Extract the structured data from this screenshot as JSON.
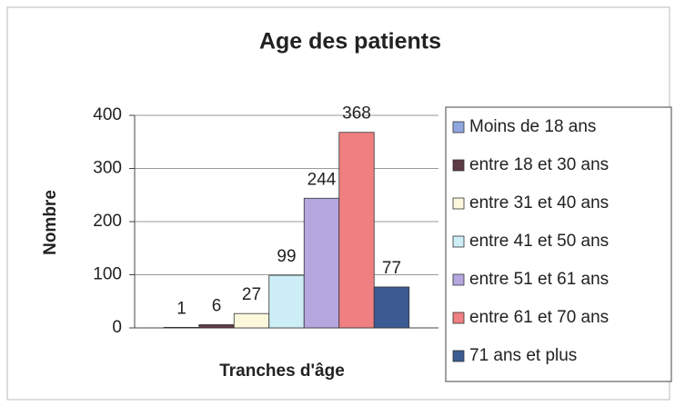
{
  "chart_data": {
    "type": "bar",
    "title": "Age des patients",
    "x_label": "Tranches d'âge",
    "y_label": "Nombre",
    "series": [
      {
        "name": "Moins de 18 ans",
        "color": "#8fa6e0",
        "values": [
          1
        ]
      },
      {
        "name": "entre 18 et 30 ans",
        "color": "#5e3a44",
        "values": [
          6
        ]
      },
      {
        "name": "entre 31 et 40 ans",
        "color": "#fbf8dc",
        "values": [
          27
        ]
      },
      {
        "name": "entre 41 et 50 ans",
        "color": "#cdeef6",
        "values": [
          99
        ]
      },
      {
        "name": "entre 51 et 61 ans",
        "color": "#b6a6de",
        "values": [
          244
        ]
      },
      {
        "name": "entre 61 et 70 ans",
        "color": "#ef7f80",
        "values": [
          368
        ]
      },
      {
        "name": "71 ans et plus",
        "color": "#3b5b92",
        "values": [
          77
        ]
      }
    ],
    "ylim": [
      0,
      400
    ],
    "yticks": [
      0,
      100,
      200,
      300,
      400
    ],
    "grid": true,
    "legend": "right"
  }
}
